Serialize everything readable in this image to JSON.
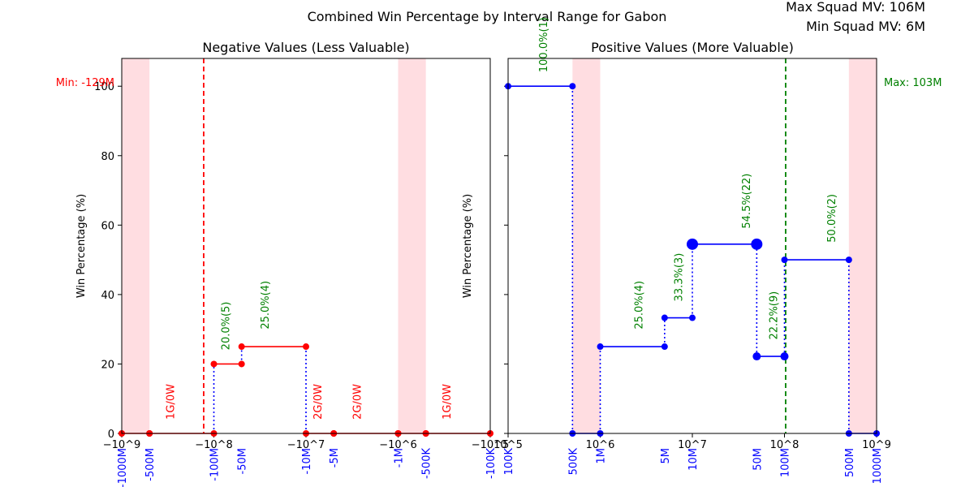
{
  "figure": {
    "title": "Combined Win Percentage by Interval Range for Gabon",
    "stats": [
      "Max Squad MV: 106M",
      "Min Squad MV: 6M"
    ]
  },
  "colors": {
    "negative": "#ff0000",
    "positive": "#0000ff",
    "label_green": "#008000",
    "band": "#ffdde1",
    "tick_blue": "#0000ff"
  },
  "chart_data": [
    {
      "type": "line",
      "title": "Negative Values (Less Valuable)",
      "ylabel": "Win Percentage (%)",
      "xscale": "symlog-negative",
      "xlim": [
        -1000000000,
        -100000
      ],
      "ylim": [
        0,
        108
      ],
      "yticks": [
        0,
        20,
        40,
        60,
        80,
        100
      ],
      "xticks": [
        {
          "v": -1000000000,
          "label": "−10^9"
        },
        {
          "v": -100000000,
          "label": "−10^8"
        },
        {
          "v": -10000000,
          "label": "−10^7"
        },
        {
          "v": -1000000,
          "label": "−10^6"
        },
        {
          "v": -100000,
          "label": "−10^5"
        }
      ],
      "bin_labels": [
        {
          "v": -1000000000,
          "label": "-1000M"
        },
        {
          "v": -500000000,
          "label": "-500M"
        },
        {
          "v": -100000000,
          "label": "-100M"
        },
        {
          "v": -50000000,
          "label": "-50M"
        },
        {
          "v": -10000000,
          "label": "-10M"
        },
        {
          "v": -5000000,
          "label": "-5M"
        },
        {
          "v": -1000000,
          "label": "-1M"
        },
        {
          "v": -500000,
          "label": "-500K"
        },
        {
          "v": -100000,
          "label": "-100K"
        }
      ],
      "bands": [
        [
          -1000000000,
          -500000000
        ],
        [
          -1000000,
          -500000
        ]
      ],
      "vline": {
        "x": -129000000,
        "label": "Min: -129M"
      },
      "steps": [
        {
          "x0": -1000000000,
          "x1": -500000000,
          "y": 0
        },
        {
          "x0": -500000000,
          "x1": -100000000,
          "y": 0
        },
        {
          "x0": -100000000,
          "x1": -50000000,
          "y": 20
        },
        {
          "x0": -50000000,
          "x1": -10000000,
          "y": 25
        },
        {
          "x0": -10000000,
          "x1": -5000000,
          "y": 0
        },
        {
          "x0": -5000000,
          "x1": -1000000,
          "y": 0
        },
        {
          "x0": -1000000,
          "x1": -500000,
          "y": 0
        },
        {
          "x0": -500000,
          "x1": -100000,
          "y": 0
        }
      ],
      "annotations": [
        {
          "x": -300000000,
          "y": 4,
          "text": "1G/0W",
          "color": "red"
        },
        {
          "x": -75000000,
          "y": 24,
          "text": "20.0%(5)",
          "color": "green"
        },
        {
          "x": -28000000,
          "y": 30,
          "text": "25.0%(4)",
          "color": "green"
        },
        {
          "x": -7500000,
          "y": 4,
          "text": "2G/0W",
          "color": "red"
        },
        {
          "x": -2800000,
          "y": 4,
          "text": "2G/0W",
          "color": "red"
        },
        {
          "x": -300000,
          "y": 4,
          "text": "1G/0W",
          "color": "red"
        }
      ]
    },
    {
      "type": "line",
      "title": "Positive Values (More Valuable)",
      "ylabel": "Win Percentage (%)",
      "xscale": "log",
      "xlim": [
        100000,
        1000000000
      ],
      "ylim": [
        0,
        108
      ],
      "yticks": [
        0,
        20,
        40,
        60,
        80,
        100
      ],
      "xticks": [
        {
          "v": 100000,
          "label": "10^5"
        },
        {
          "v": 1000000,
          "label": "10^6"
        },
        {
          "v": 10000000,
          "label": "10^7"
        },
        {
          "v": 100000000,
          "label": "10^8"
        },
        {
          "v": 1000000000,
          "label": "10^9"
        }
      ],
      "bin_labels": [
        {
          "v": 100000,
          "label": "100K"
        },
        {
          "v": 500000,
          "label": "500K"
        },
        {
          "v": 1000000,
          "label": "1M"
        },
        {
          "v": 5000000,
          "label": "5M"
        },
        {
          "v": 10000000,
          "label": "10M"
        },
        {
          "v": 50000000,
          "label": "50M"
        },
        {
          "v": 100000000,
          "label": "100M"
        },
        {
          "v": 500000000,
          "label": "500M"
        },
        {
          "v": 1000000000,
          "label": "1000M"
        }
      ],
      "bands": [
        [
          500000,
          1000000
        ],
        [
          500000000,
          1000000000
        ]
      ],
      "vline": {
        "x": 103000000,
        "label": "Max: 103M"
      },
      "steps": [
        {
          "x0": 100000,
          "x1": 500000,
          "y": 100
        },
        {
          "x0": 500000,
          "x1": 1000000,
          "y": 0
        },
        {
          "x0": 1000000,
          "x1": 5000000,
          "y": 25
        },
        {
          "x0": 5000000,
          "x1": 10000000,
          "y": 33.3
        },
        {
          "x0": 10000000,
          "x1": 50000000,
          "y": 54.5,
          "big": true
        },
        {
          "x0": 50000000,
          "x1": 100000000,
          "y": 22.2,
          "mid": true
        },
        {
          "x0": 100000000,
          "x1": 500000000,
          "y": 50
        },
        {
          "x0": 500000000,
          "x1": 1000000000,
          "y": 0
        }
      ],
      "annotations": [
        {
          "x": 240000,
          "y": 104,
          "text": "100.0%(1)",
          "color": "green"
        },
        {
          "x": 2600000,
          "y": 30,
          "text": "25.0%(4)",
          "color": "green"
        },
        {
          "x": 7000000,
          "y": 38,
          "text": "33.3%(3)",
          "color": "green"
        },
        {
          "x": 38000000,
          "y": 59,
          "text": "54.5%(22)",
          "color": "green"
        },
        {
          "x": 75000000,
          "y": 27,
          "text": "22.2%(9)",
          "color": "green"
        },
        {
          "x": 320000000,
          "y": 55,
          "text": "50.0%(2)",
          "color": "green"
        }
      ]
    }
  ]
}
